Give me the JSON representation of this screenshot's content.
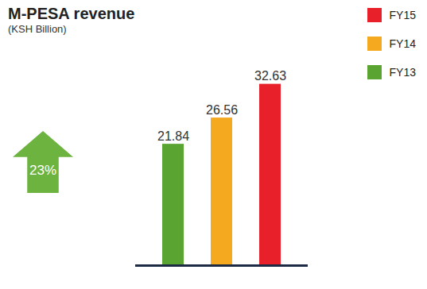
{
  "chart_data": {
    "type": "bar",
    "title": "M-PESA revenue",
    "subtitle": "(KSH Billion)",
    "categories": [
      "FY13",
      "FY14",
      "FY15"
    ],
    "values": [
      21.84,
      26.56,
      32.63
    ],
    "colors": [
      "#5aa532",
      "#f5a91f",
      "#e8202a"
    ],
    "ylim": [
      0,
      36
    ],
    "data_labels": true,
    "tick_labels": false,
    "legend": "top-right",
    "annotation": {
      "text": "23%",
      "color": "#6cb33f"
    }
  }
}
